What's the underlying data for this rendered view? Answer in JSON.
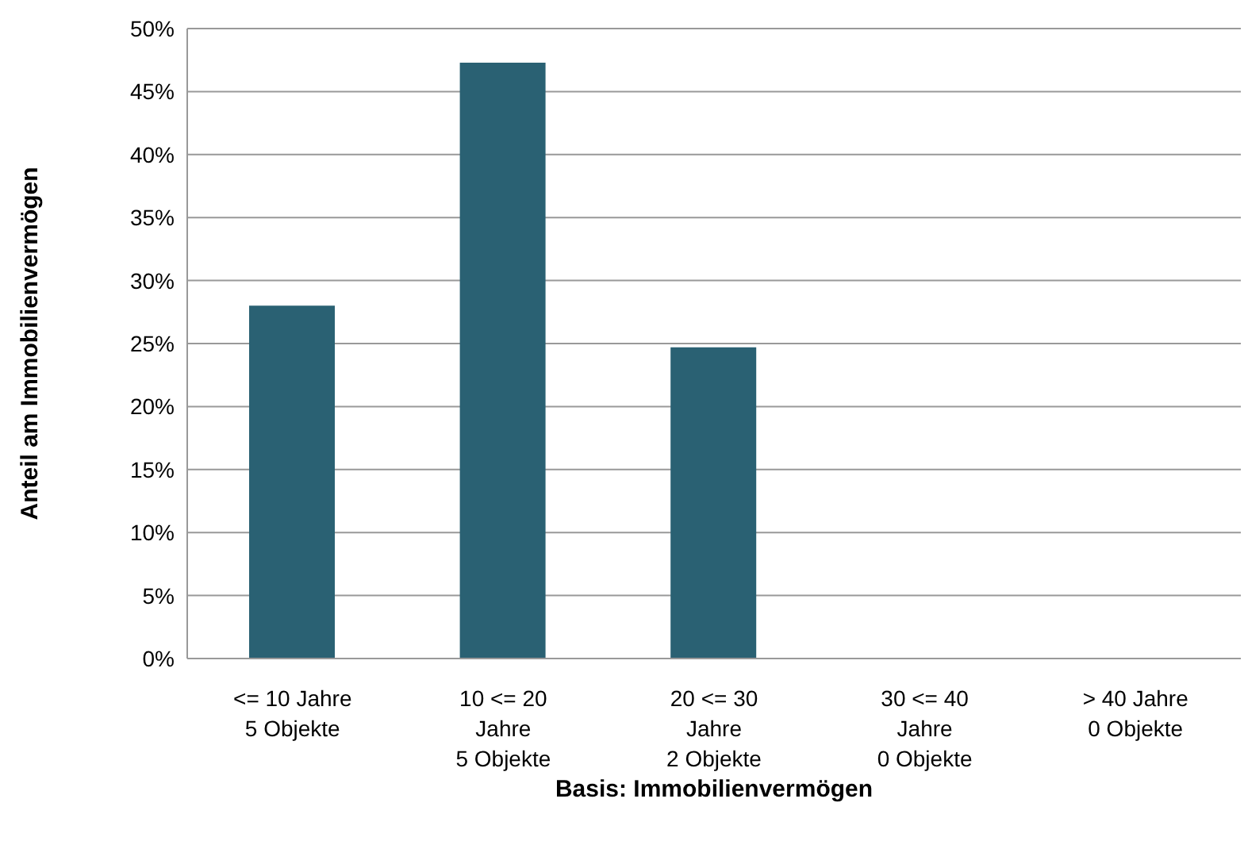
{
  "chart_data": {
    "type": "bar",
    "xlabel": "Basis: Immobilienvermögen",
    "ylabel": "Anteil am Immobilienvermögen",
    "categories": [
      "<= 10 Jahre\n5 Objekte",
      "10 <= 20\nJahre\n5 Objekte",
      "20 <= 30\nJahre\n2 Objekte",
      "30 <= 40\nJahre\n0 Objekte",
      "> 40 Jahre\n0 Objekte"
    ],
    "values": [
      28.0,
      47.3,
      24.7,
      0,
      0
    ],
    "color": "#2a6173",
    "ylim": [
      0,
      50
    ],
    "yticks": [
      {
        "value": 0,
        "label": "0%"
      },
      {
        "value": 5,
        "label": "5%"
      },
      {
        "value": 10,
        "label": "10%"
      },
      {
        "value": 15,
        "label": "15%"
      },
      {
        "value": 20,
        "label": "20%"
      },
      {
        "value": 25,
        "label": "25%"
      },
      {
        "value": 30,
        "label": "30%"
      },
      {
        "value": 35,
        "label": "35%"
      },
      {
        "value": 40,
        "label": "40%"
      },
      {
        "value": 45,
        "label": "45%"
      },
      {
        "value": 50,
        "label": "50%"
      }
    ],
    "grid": "y",
    "legend": false
  }
}
